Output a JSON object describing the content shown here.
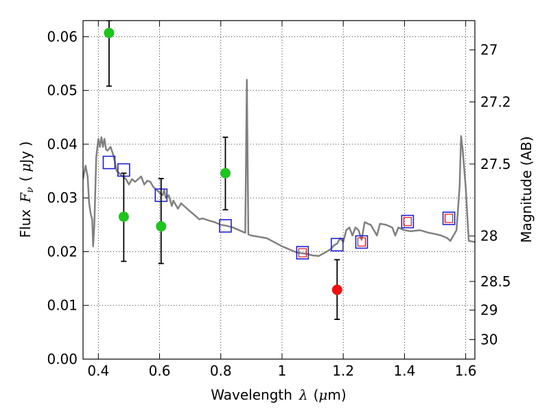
{
  "chart_data": {
    "type": "scatter",
    "xlabel": "Wavelength",
    "xlabel_symbol": "λ",
    "xlabel_unit_open": "(",
    "xlabel_unit_mu": "μ",
    "xlabel_unit_rest": "m)",
    "ylabel": "Flux",
    "ylabel_symbol_F": "F",
    "ylabel_symbol_nu": "ν",
    "ylabel_unit_open": "(",
    "ylabel_unit_mu": "μ",
    "ylabel_unit_rest": "Jy )",
    "y2label": "Magnitude (AB)",
    "xlim": [
      0.35,
      1.63
    ],
    "ylim": [
      0.0,
      0.063
    ],
    "grid": true,
    "x_ticks": [
      0.4,
      0.6,
      0.8,
      1.0,
      1.2,
      1.4,
      1.6
    ],
    "x_tick_labels": [
      "0.4",
      "0.6",
      "0.8",
      "1",
      "1.2",
      "1.4",
      "1.6"
    ],
    "y_ticks": [
      0.0,
      0.01,
      0.02,
      0.03,
      0.04,
      0.05,
      0.06
    ],
    "y_tick_labels": [
      "0.00",
      "0.01",
      "0.02",
      "0.03",
      "0.04",
      "0.05",
      "0.06"
    ],
    "y2_ticks": [
      27,
      27.2,
      27.5,
      28,
      28.5,
      29,
      30
    ],
    "y2_tick_labels": [
      "27",
      "27.2",
      "27.5",
      "28",
      "28.5",
      "29",
      "30"
    ],
    "colors": {
      "spectrum": "#808080",
      "detection": "#1ec41e",
      "upper_limit": "#ee1111",
      "model_box": "#1f1fd4",
      "model_box_inner": "#ee1111",
      "errorbar": "#000000"
    },
    "spectrum": [
      [
        0.35,
        0.0335
      ],
      [
        0.358,
        0.036
      ],
      [
        0.365,
        0.034
      ],
      [
        0.37,
        0.029
      ],
      [
        0.375,
        0.027
      ],
      [
        0.38,
        0.026
      ],
      [
        0.383,
        0.021
      ],
      [
        0.387,
        0.025
      ],
      [
        0.393,
        0.0375
      ],
      [
        0.4,
        0.041
      ],
      [
        0.405,
        0.0395
      ],
      [
        0.41,
        0.0413
      ],
      [
        0.415,
        0.0395
      ],
      [
        0.42,
        0.041
      ],
      [
        0.425,
        0.039
      ],
      [
        0.43,
        0.0388
      ],
      [
        0.44,
        0.0395
      ],
      [
        0.45,
        0.0378
      ],
      [
        0.46,
        0.035
      ],
      [
        0.47,
        0.0345
      ],
      [
        0.48,
        0.034
      ],
      [
        0.49,
        0.0335
      ],
      [
        0.5,
        0.0325
      ],
      [
        0.51,
        0.0335
      ],
      [
        0.52,
        0.033
      ],
      [
        0.53,
        0.0335
      ],
      [
        0.54,
        0.034
      ],
      [
        0.55,
        0.0325
      ],
      [
        0.56,
        0.0332
      ],
      [
        0.57,
        0.033
      ],
      [
        0.58,
        0.032
      ],
      [
        0.59,
        0.0315
      ],
      [
        0.6,
        0.031
      ],
      [
        0.61,
        0.0305
      ],
      [
        0.615,
        0.0315
      ],
      [
        0.62,
        0.03
      ],
      [
        0.63,
        0.0305
      ],
      [
        0.64,
        0.0285
      ],
      [
        0.645,
        0.0295
      ],
      [
        0.65,
        0.029
      ],
      [
        0.66,
        0.028
      ],
      [
        0.67,
        0.029
      ],
      [
        0.68,
        0.0285
      ],
      [
        0.7,
        0.0275
      ],
      [
        0.72,
        0.0265
      ],
      [
        0.73,
        0.026
      ],
      [
        0.74,
        0.0262
      ],
      [
        0.76,
        0.0258
      ],
      [
        0.78,
        0.0255
      ],
      [
        0.8,
        0.025
      ],
      [
        0.82,
        0.0248
      ],
      [
        0.84,
        0.0245
      ],
      [
        0.86,
        0.024
      ],
      [
        0.88,
        0.0235
      ],
      [
        0.885,
        0.052
      ],
      [
        0.89,
        0.0232
      ],
      [
        0.9,
        0.023
      ],
      [
        0.95,
        0.0225
      ],
      [
        1.0,
        0.021
      ],
      [
        1.05,
        0.0198
      ],
      [
        1.08,
        0.0196
      ],
      [
        1.1,
        0.0193
      ],
      [
        1.12,
        0.0192
      ],
      [
        1.14,
        0.0198
      ],
      [
        1.16,
        0.0205
      ],
      [
        1.17,
        0.0212
      ],
      [
        1.18,
        0.0215
      ],
      [
        1.19,
        0.0225
      ],
      [
        1.2,
        0.0218
      ],
      [
        1.21,
        0.024
      ],
      [
        1.22,
        0.0245
      ],
      [
        1.23,
        0.023
      ],
      [
        1.24,
        0.0245
      ],
      [
        1.25,
        0.024
      ],
      [
        1.26,
        0.0222
      ],
      [
        1.27,
        0.0255
      ],
      [
        1.28,
        0.0252
      ],
      [
        1.29,
        0.025
      ],
      [
        1.3,
        0.024
      ],
      [
        1.31,
        0.023
      ],
      [
        1.32,
        0.0252
      ],
      [
        1.34,
        0.025
      ],
      [
        1.36,
        0.0245
      ],
      [
        1.37,
        0.023
      ],
      [
        1.38,
        0.0245
      ],
      [
        1.4,
        0.024
      ],
      [
        1.42,
        0.0238
      ],
      [
        1.45,
        0.024
      ],
      [
        1.48,
        0.0235
      ],
      [
        1.5,
        0.0233
      ],
      [
        1.52,
        0.023
      ],
      [
        1.54,
        0.0225
      ],
      [
        1.55,
        0.022
      ],
      [
        1.57,
        0.024
      ],
      [
        1.58,
        0.032
      ],
      [
        1.585,
        0.0415
      ],
      [
        1.59,
        0.039
      ],
      [
        1.6,
        0.032
      ],
      [
        1.61,
        0.022
      ],
      [
        1.63,
        0.0218
      ]
    ],
    "detections": [
      {
        "x": 0.435,
        "y": 0.0607,
        "yerr_low": 0.0508,
        "yerr_high": 0.063
      },
      {
        "x": 0.483,
        "y": 0.0265,
        "yerr_low": 0.0182,
        "yerr_high": 0.0346
      },
      {
        "x": 0.605,
        "y": 0.0247,
        "yerr_low": 0.0178,
        "yerr_high": 0.0336
      },
      {
        "x": 0.815,
        "y": 0.0346,
        "yerr_low": 0.0278,
        "yerr_high": 0.0413
      }
    ],
    "upper_limits": [
      {
        "x": 1.18,
        "y": 0.0129,
        "yerr_low": 0.0074,
        "yerr_high": 0.0185
      }
    ],
    "model_boxes": [
      {
        "x": 0.435,
        "y": 0.0366,
        "inner": false
      },
      {
        "x": 0.483,
        "y": 0.0352,
        "inner": false
      },
      {
        "x": 0.605,
        "y": 0.0305,
        "inner": false
      },
      {
        "x": 0.815,
        "y": 0.0248,
        "inner": false
      },
      {
        "x": 1.067,
        "y": 0.0198,
        "inner": true
      },
      {
        "x": 1.18,
        "y": 0.0213,
        "inner": false
      },
      {
        "x": 1.26,
        "y": 0.0218,
        "inner": true
      },
      {
        "x": 1.41,
        "y": 0.0256,
        "inner": true
      },
      {
        "x": 1.545,
        "y": 0.0262,
        "inner": true
      }
    ]
  }
}
